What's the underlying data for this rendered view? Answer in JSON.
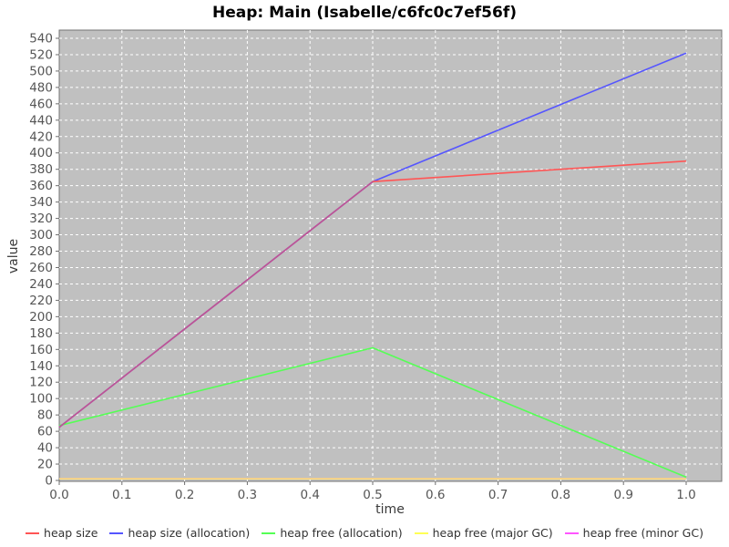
{
  "chart": {
    "title": "Heap: Main (Isabelle/c6fc0c7ef56f)",
    "x_axis_label": "time",
    "y_axis_label": "value"
  },
  "chart_data": {
    "type": "line",
    "title": "Heap: Main (Isabelle/c6fc0c7ef56f)",
    "xlabel": "time",
    "ylabel": "value",
    "xlim": [
      0.0,
      1.0
    ],
    "ylim": [
      0,
      540
    ],
    "x_tick_step": 0.1,
    "y_tick_step": 20,
    "grid": true,
    "grid_style": "white dashed on gray plot background",
    "plot_bg": "#c0c0c0",
    "grid_color": "#ffffff",
    "legend_position": "bottom",
    "series": [
      {
        "name": "heap size",
        "color": "#ff5555",
        "x": [
          0.0,
          0.5,
          1.0
        ],
        "y": [
          65,
          365,
          390
        ]
      },
      {
        "name": "heap size (allocation)",
        "color": "#5555ff",
        "x": [
          0.0,
          0.5,
          1.0
        ],
        "y": [
          65,
          365,
          522
        ]
      },
      {
        "name": "heap free (allocation)",
        "color": "#55ff55",
        "x": [
          0.0,
          0.5,
          1.0
        ],
        "y": [
          67,
          162,
          4
        ]
      },
      {
        "name": "heap free (major GC)",
        "color": "#ffff55",
        "x": [
          0.0,
          0.5,
          1.0
        ],
        "y": [
          2,
          2,
          2
        ]
      },
      {
        "name": "heap free (minor GC)",
        "color": "#ff55ff",
        "x": [
          0.0,
          0.5,
          1.0
        ],
        "y": [
          2,
          2,
          2
        ]
      }
    ]
  }
}
